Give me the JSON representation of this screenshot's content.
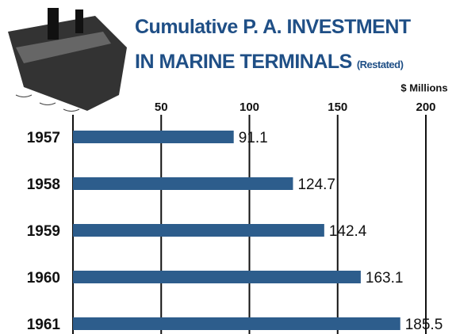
{
  "chart_data": {
    "type": "bar",
    "orientation": "horizontal",
    "title": "Cumulative P. A. INVESTMENT IN MARINE TERMINALS",
    "subtitle": "(Restated)",
    "x_axis_label": "$ Millions",
    "categories": [
      "1957",
      "1958",
      "1959",
      "1960",
      "1961"
    ],
    "values": [
      91.1,
      124.7,
      142.4,
      163.1,
      185.5
    ],
    "color": "#2d5d8c",
    "xlim": [
      0,
      200
    ],
    "xticks": [
      50,
      100,
      150,
      200
    ],
    "grid": true
  }
}
